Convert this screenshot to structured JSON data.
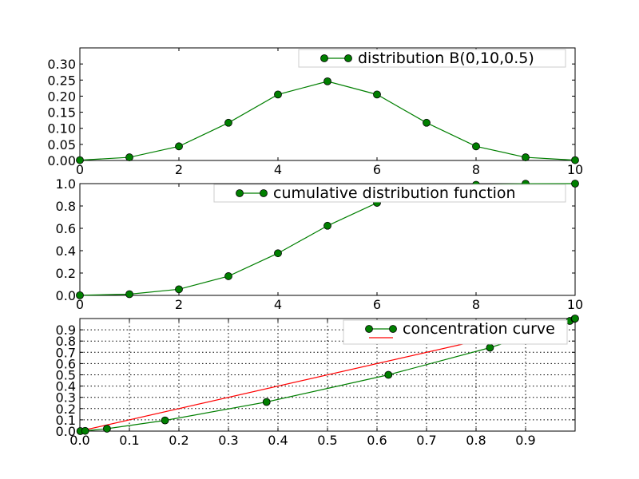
{
  "chart_data": [
    {
      "type": "line",
      "title": "",
      "xlabel": "",
      "ylabel": "",
      "xlim": [
        0,
        10
      ],
      "ylim": [
        0,
        0.35
      ],
      "x_ticks": [
        "0",
        "2",
        "4",
        "6",
        "8",
        "10"
      ],
      "y_ticks": [
        "0.00",
        "0.05",
        "0.10",
        "0.15",
        "0.20",
        "0.25",
        "0.30"
      ],
      "grid": false,
      "legend_position": "top-right",
      "series": [
        {
          "name": "distribution B(0,10,0.5)",
          "color": "#007f00",
          "marker": "circle",
          "x": [
            0,
            1,
            2,
            3,
            4,
            5,
            6,
            7,
            8,
            9,
            10
          ],
          "y": [
            0.001,
            0.0098,
            0.0439,
            0.1172,
            0.2051,
            0.2461,
            0.2051,
            0.1172,
            0.0439,
            0.0098,
            0.001
          ]
        }
      ]
    },
    {
      "type": "line",
      "title": "",
      "xlabel": "",
      "ylabel": "",
      "xlim": [
        0,
        10
      ],
      "ylim": [
        0,
        1.0
      ],
      "x_ticks": [
        "0",
        "2",
        "4",
        "6",
        "8",
        "10"
      ],
      "y_ticks": [
        "0.0",
        "0.2",
        "0.4",
        "0.6",
        "0.8",
        "1.0"
      ],
      "grid": false,
      "legend_position": "top-right",
      "series": [
        {
          "name": "cumulative distribution function",
          "color": "#007f00",
          "marker": "circle",
          "x": [
            0,
            1,
            2,
            3,
            4,
            5,
            6,
            7,
            8,
            9,
            10
          ],
          "y": [
            0.001,
            0.0107,
            0.0547,
            0.1719,
            0.377,
            0.623,
            0.8281,
            0.9453,
            0.9893,
            0.999,
            1.0
          ]
        }
      ]
    },
    {
      "type": "line",
      "title": "",
      "xlabel": "",
      "ylabel": "",
      "xlim": [
        0,
        1.0
      ],
      "ylim": [
        0,
        1.0
      ],
      "x_ticks": [
        "0.0",
        "0.1",
        "0.2",
        "0.3",
        "0.4",
        "0.5",
        "0.6",
        "0.7",
        "0.8",
        "0.9"
      ],
      "y_ticks": [
        "0.0",
        "0.1",
        "0.2",
        "0.3",
        "0.4",
        "0.5",
        "0.6",
        "0.7",
        "0.8",
        "0.9"
      ],
      "grid": true,
      "legend_position": "top-right",
      "series": [
        {
          "name": "concentration curve",
          "color": "#007f00",
          "marker": "circle",
          "x": [
            0.001,
            0.0107,
            0.0547,
            0.1719,
            0.377,
            0.623,
            0.8281,
            0.9453,
            0.9893,
            0.999,
            1.0
          ],
          "y": [
            0.0,
            0.002,
            0.0215,
            0.0947,
            0.2588,
            0.5,
            0.7412,
            0.9053,
            0.9785,
            0.998,
            1.0
          ]
        },
        {
          "name": "",
          "color": "#ff0000",
          "marker": "none",
          "x": [
            0,
            1
          ],
          "y": [
            0,
            1
          ]
        }
      ]
    }
  ]
}
